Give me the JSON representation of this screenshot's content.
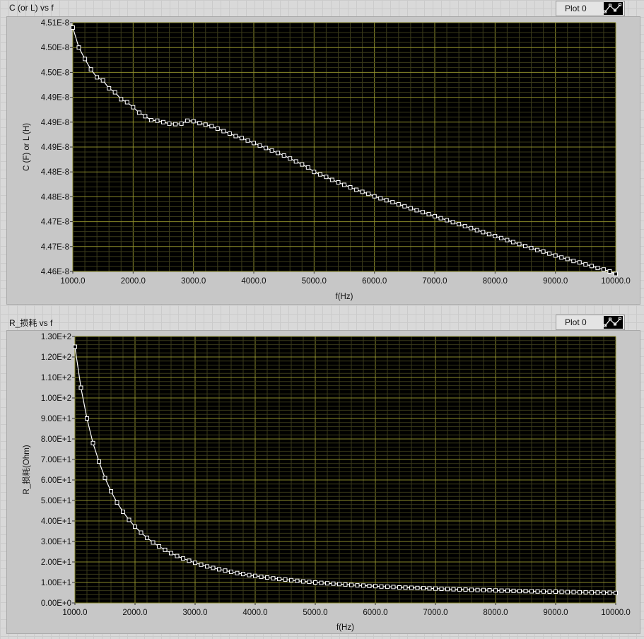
{
  "charts": [
    {
      "title": "C (or L) vs f",
      "legend_label": "Plot 0",
      "legend_icon": "plot-legend-icon"
    },
    {
      "title": "R_损耗 vs f",
      "legend_label": "Plot 0",
      "legend_icon": "plot-legend-icon"
    }
  ],
  "colors": {
    "plot_background": "#000000",
    "grid_major": "#8a8a2a",
    "grid_minor": "#3a3a1a",
    "series": "#ffffff"
  },
  "chart_data": [
    {
      "type": "line",
      "title": "C (or L) vs f",
      "xlabel": "f(Hz)",
      "ylabel": "C (F) or L (H)",
      "xlim": [
        1000,
        10000
      ],
      "ylim": [
        4.4625e-08,
        4.5125e-08
      ],
      "xticks": [
        "1000.0",
        "2000.0",
        "3000.0",
        "4000.0",
        "5000.0",
        "6000.0",
        "7000.0",
        "8000.0",
        "9000.0",
        "10000.0"
      ],
      "yticks": [
        "4.51E-8",
        "4.50E-8",
        "4.50E-8",
        "4.49E-8",
        "4.49E-8",
        "4.49E-8",
        "4.48E-8",
        "4.48E-8",
        "4.47E-8",
        "4.47E-8",
        "4.46E-8"
      ],
      "grid": true,
      "markers": "hollow-square",
      "series": [
        {
          "name": "Plot 0",
          "x": [
            1000,
            1100,
            1200,
            1300,
            1400,
            1500,
            1600,
            1700,
            1800,
            1900,
            2000,
            2100,
            2200,
            2300,
            2400,
            2500,
            2600,
            2700,
            2800,
            2900,
            3000,
            3100,
            3200,
            3300,
            3400,
            3500,
            3600,
            3700,
            3800,
            3900,
            4000,
            4100,
            4200,
            4300,
            4400,
            4500,
            4600,
            4700,
            4800,
            4900,
            5000,
            5100,
            5200,
            5300,
            5400,
            5500,
            5600,
            5700,
            5800,
            5900,
            6000,
            6100,
            6200,
            6300,
            6400,
            6500,
            6600,
            6700,
            6800,
            6900,
            7000,
            7100,
            7200,
            7300,
            7400,
            7500,
            7600,
            7700,
            7800,
            7900,
            8000,
            8100,
            8200,
            8300,
            8400,
            8500,
            8600,
            8700,
            8800,
            8900,
            9000,
            9100,
            9200,
            9300,
            9400,
            9500,
            9600,
            9700,
            9800,
            9900,
            10000
          ],
          "values": [
            4.5115e-08,
            4.5075e-08,
            4.5052e-08,
            4.5031e-08,
            4.5015e-08,
            4.5009e-08,
            4.4993e-08,
            4.4985e-08,
            4.4971e-08,
            4.4965e-08,
            4.4955e-08,
            4.4944e-08,
            4.4937e-08,
            4.4929e-08,
            4.4928e-08,
            4.4925e-08,
            4.4922e-08,
            4.4921e-08,
            4.4922e-08,
            4.4928e-08,
            4.4927e-08,
            4.4923e-08,
            4.492e-08,
            4.4917e-08,
            4.4912e-08,
            4.4907e-08,
            4.4902e-08,
            4.4897e-08,
            4.4893e-08,
            4.4888e-08,
            4.4883e-08,
            4.4878e-08,
            4.4873e-08,
            4.4868e-08,
            4.4863e-08,
            4.4858e-08,
            4.4852e-08,
            4.4846e-08,
            4.484e-08,
            4.4834e-08,
            4.4825e-08,
            4.482e-08,
            4.4815e-08,
            4.4809e-08,
            4.4804e-08,
            4.4799e-08,
            4.4794e-08,
            4.4789e-08,
            4.4785e-08,
            4.4781e-08,
            4.4776e-08,
            4.4772e-08,
            4.4768e-08,
            4.4764e-08,
            4.476e-08,
            4.4756e-08,
            4.4752e-08,
            4.4748e-08,
            4.4744e-08,
            4.474e-08,
            4.4736e-08,
            4.4732e-08,
            4.4728e-08,
            4.4724e-08,
            4.472e-08,
            4.4716e-08,
            4.4712e-08,
            4.4708e-08,
            4.4704e-08,
            4.47e-08,
            4.4696e-08,
            4.4692e-08,
            4.4688e-08,
            4.4684e-08,
            4.468e-08,
            4.4676e-08,
            4.4672e-08,
            4.4668e-08,
            4.4665e-08,
            4.4661e-08,
            4.4657e-08,
            4.4653e-08,
            4.465e-08,
            4.4646e-08,
            4.4643e-08,
            4.4639e-08,
            4.4636e-08,
            4.4632e-08,
            4.4629e-08,
            4.4625e-08,
            4.462e-08
          ]
        }
      ]
    },
    {
      "type": "line",
      "title": "R_损耗 vs f",
      "xlabel": "f(Hz)",
      "ylabel": "R_损耗(Ohm)",
      "xlim": [
        1000,
        10000
      ],
      "ylim": [
        0,
        130
      ],
      "xticks": [
        "1000.0",
        "2000.0",
        "3000.0",
        "4000.0",
        "5000.0",
        "6000.0",
        "7000.0",
        "8000.0",
        "9000.0",
        "10000.0"
      ],
      "yticks": [
        "1.30E+2",
        "1.20E+2",
        "1.10E+2",
        "1.00E+2",
        "9.00E+1",
        "8.00E+1",
        "7.00E+1",
        "6.00E+1",
        "5.00E+1",
        "4.00E+1",
        "3.00E+1",
        "2.00E+1",
        "1.00E+1",
        "0.00E+0"
      ],
      "grid": true,
      "markers": "hollow-square",
      "series": [
        {
          "name": "Plot 0",
          "x": [
            1000,
            1100,
            1200,
            1300,
            1400,
            1500,
            1600,
            1700,
            1800,
            1900,
            2000,
            2100,
            2200,
            2300,
            2400,
            2500,
            2600,
            2700,
            2800,
            2900,
            3000,
            3100,
            3200,
            3300,
            3400,
            3500,
            3600,
            3700,
            3800,
            3900,
            4000,
            4100,
            4200,
            4300,
            4400,
            4500,
            4600,
            4700,
            4800,
            4900,
            5000,
            5100,
            5200,
            5300,
            5400,
            5500,
            5600,
            5700,
            5800,
            5900,
            6000,
            6100,
            6200,
            6300,
            6400,
            6500,
            6600,
            6700,
            6800,
            6900,
            7000,
            7100,
            7200,
            7300,
            7400,
            7500,
            7600,
            7700,
            7800,
            7900,
            8000,
            8100,
            8200,
            8300,
            8400,
            8500,
            8600,
            8700,
            8800,
            8900,
            9000,
            9100,
            9200,
            9300,
            9400,
            9500,
            9600,
            9700,
            9800,
            9900,
            10000
          ],
          "values": [
            125.0,
            105.0,
            90.0,
            78.0,
            69.0,
            61.0,
            54.5,
            49.0,
            44.5,
            40.5,
            37.2,
            34.3,
            31.8,
            29.5,
            27.6,
            25.9,
            24.3,
            22.9,
            21.7,
            20.6,
            19.6,
            18.7,
            17.8,
            17.1,
            16.4,
            15.8,
            15.2,
            14.6,
            14.1,
            13.6,
            13.2,
            12.8,
            12.4,
            12.0,
            11.7,
            11.4,
            11.1,
            10.8,
            10.5,
            10.3,
            10.0,
            9.8,
            9.6,
            9.4,
            9.2,
            9.0,
            8.8,
            8.6,
            8.5,
            8.3,
            8.2,
            8.0,
            7.9,
            7.8,
            7.6,
            7.5,
            7.4,
            7.3,
            7.2,
            7.1,
            7.0,
            6.9,
            6.8,
            6.7,
            6.6,
            6.5,
            6.4,
            6.3,
            6.3,
            6.2,
            6.1,
            6.0,
            6.0,
            5.9,
            5.8,
            5.8,
            5.7,
            5.6,
            5.6,
            5.5,
            5.5,
            5.4,
            5.3,
            5.3,
            5.2,
            5.2,
            5.1,
            5.1,
            5.0,
            5.0,
            4.9
          ]
        }
      ]
    }
  ]
}
